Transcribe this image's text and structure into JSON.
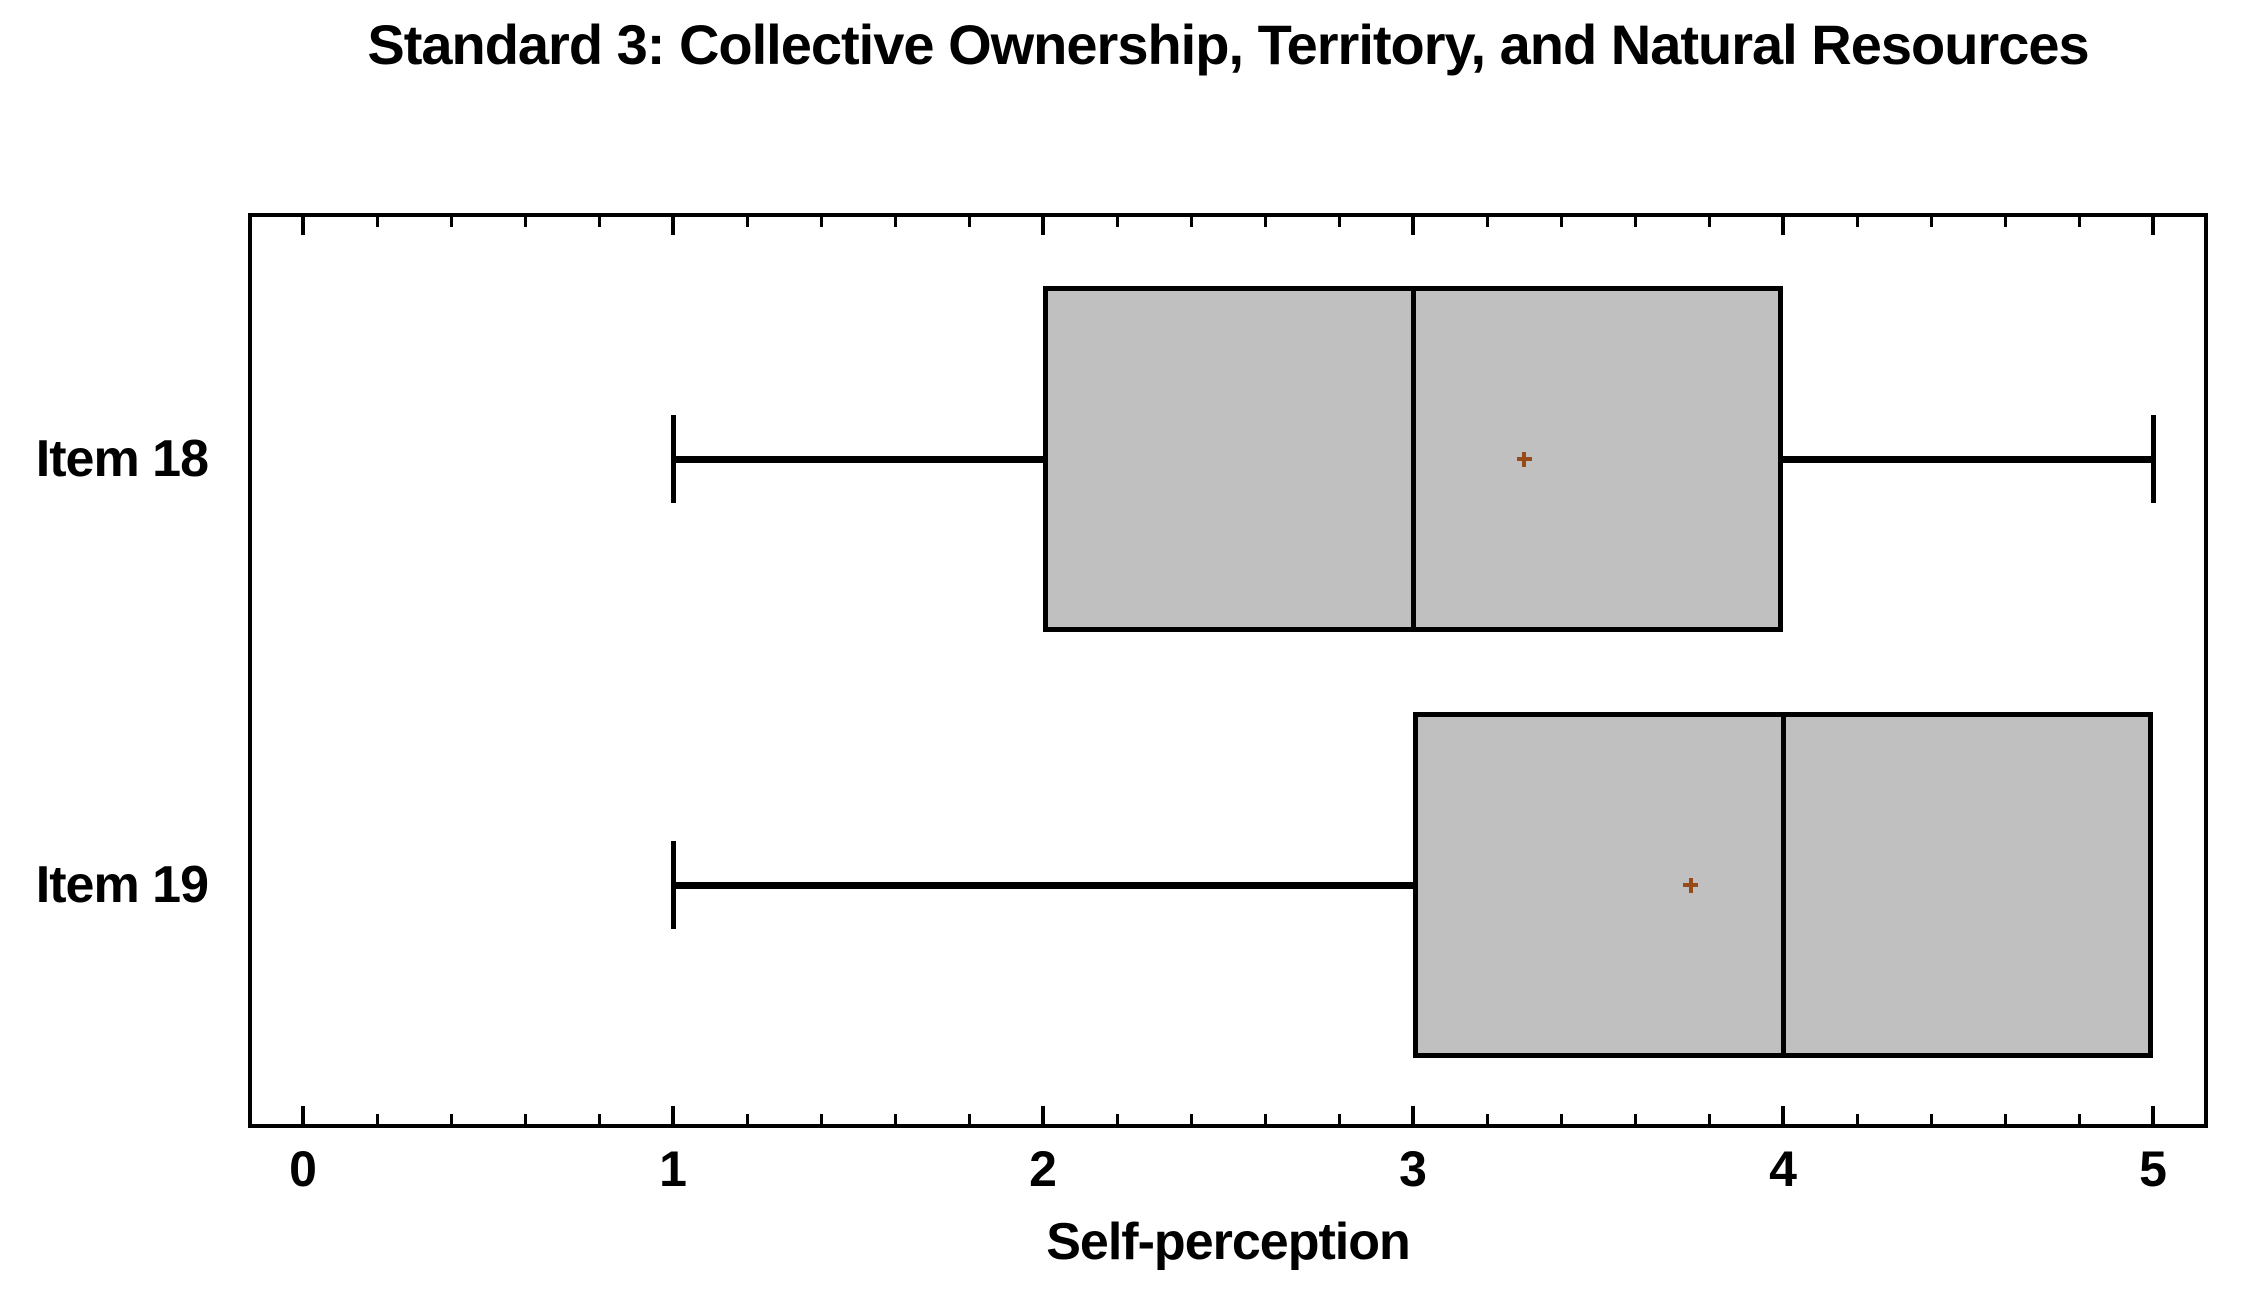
{
  "chart_data": {
    "type": "boxplot",
    "orientation": "horizontal",
    "title": "Standard 3: Collective Ownership, Territory, and Natural Resources",
    "xlabel": "Self-perception",
    "x_axis": {
      "min": 0,
      "max": 5,
      "major_tick_step": 1,
      "minor_tick_step": 0.2,
      "tick_labels": [
        "0",
        "1",
        "2",
        "3",
        "4",
        "5"
      ]
    },
    "grid": false,
    "legend": "none",
    "series": [
      {
        "label": "Item 18",
        "whisker_min": 1,
        "q1": 2,
        "median": 3,
        "q3": 4,
        "whisker_max": 5,
        "mean": 3.3
      },
      {
        "label": "Item 19",
        "whisker_min": 1,
        "q1": 3,
        "median": 4,
        "q3": 5,
        "whisker_max": 5,
        "mean": 3.75
      }
    ],
    "colors": {
      "box_fill": "#c0c0c0",
      "box_border": "#000000",
      "line": "#000000",
      "mean_marker": "#964b19",
      "background": "#ffffff",
      "text": "#000000"
    }
  }
}
